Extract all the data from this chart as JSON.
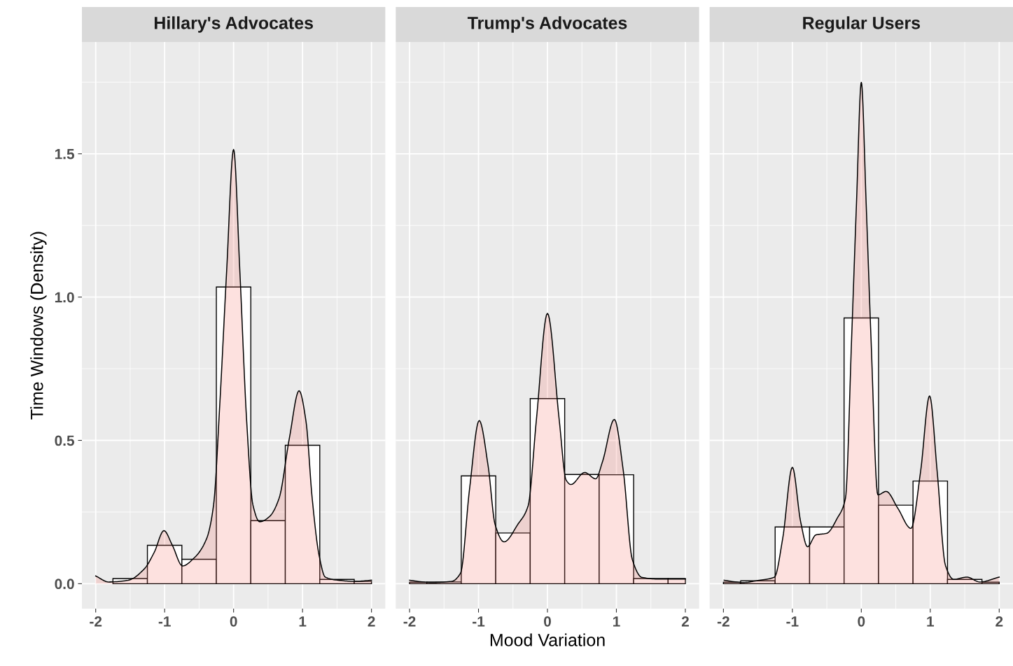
{
  "chart_data": [
    {
      "type": "histogram",
      "title": "Hillary's Advocates",
      "ylabel": "Time Windows (Density)",
      "bins": [
        -1.75,
        -1.25,
        -0.75,
        -0.25,
        0.25,
        0.75,
        1.25,
        1.75,
        2
      ],
      "values": [
        0.018,
        0.134,
        0.085,
        1.035,
        0.22,
        0.483,
        0.015,
        0.008
      ],
      "color": "#ffffff",
      "series": [
        {
          "type": "area",
          "color": "#f8766d",
          "x": [
            -2.0,
            -1.81,
            -1.53,
            -1.29,
            -1.15,
            -1.01,
            -0.89,
            -0.74,
            -0.58,
            -0.39,
            -0.29,
            -0.2,
            -0.1,
            0.0,
            0.09,
            0.19,
            0.28,
            0.38,
            0.52,
            0.66,
            0.81,
            0.95,
            1.05,
            1.14,
            1.24,
            1.33,
            1.52,
            1.76,
            2.0
          ],
          "values": [
            0.027,
            0.006,
            0.012,
            0.053,
            0.11,
            0.185,
            0.135,
            0.062,
            0.088,
            0.158,
            0.275,
            0.626,
            1.094,
            1.515,
            1.094,
            0.567,
            0.275,
            0.216,
            0.234,
            0.298,
            0.509,
            0.673,
            0.567,
            0.298,
            0.099,
            0.023,
            0.012,
            0.008,
            0.012
          ]
        }
      ],
      "xlim": [
        -2.2,
        2.2
      ],
      "ylim": [
        -0.087,
        1.89
      ],
      "xticks": [
        -2,
        -1,
        0,
        1,
        2
      ],
      "yticks": [
        {
          "value": 0,
          "label": "0.0"
        },
        0.5,
        {
          "value": 1,
          "label": "1.0"
        },
        1.5
      ],
      "grid": true,
      "legend": false
    },
    {
      "type": "histogram",
      "title": "Trump's Advocates",
      "xlabel": "Mood Variation",
      "bins": [
        -2,
        -1.75,
        -1.25,
        -0.75,
        -0.25,
        0.25,
        0.75,
        1.25,
        1.75,
        2
      ],
      "values": [
        0.005,
        0.006,
        0.376,
        0.177,
        0.646,
        0.381,
        0.38,
        0.018,
        0.018
      ],
      "color": "#ffffff",
      "series": [
        {
          "type": "area",
          "color": "#f8766d",
          "x": [
            -2.0,
            -1.69,
            -1.39,
            -1.26,
            -1.13,
            -0.99,
            -0.86,
            -0.76,
            -0.63,
            -0.43,
            -0.28,
            -0.16,
            0.0,
            0.17,
            0.27,
            0.34,
            0.54,
            0.7,
            0.8,
            0.97,
            1.1,
            1.23,
            1.37,
            1.63,
            2.0
          ],
          "values": [
            0.012,
            0.004,
            0.008,
            0.037,
            0.33,
            0.569,
            0.41,
            0.207,
            0.146,
            0.207,
            0.272,
            0.573,
            0.943,
            0.573,
            0.362,
            0.346,
            0.388,
            0.366,
            0.427,
            0.573,
            0.394,
            0.085,
            0.022,
            0.016,
            0.016
          ]
        }
      ],
      "xlim": [
        -2.2,
        2.2
      ],
      "ylim": [
        -0.087,
        1.89
      ],
      "xticks": [
        -2,
        -1,
        0,
        1,
        2
      ],
      "yticks": [
        0.0,
        0.5,
        1.0,
        1.5
      ],
      "grid": true,
      "legend": false,
      "tick_labels": "x"
    },
    {
      "type": "histogram",
      "title": "Regular Users",
      "bins": [
        -2,
        -1.75,
        -1.25,
        -0.75,
        -0.25,
        0.25,
        0.75,
        1.25,
        1.75,
        2
      ],
      "values": [
        0.005,
        0.01,
        0.198,
        0.198,
        0.927,
        0.274,
        0.358,
        0.015,
        0.005
      ],
      "color": "#ffffff",
      "series": [
        {
          "type": "area",
          "color": "#f8766d",
          "x": [
            -1.99,
            -1.72,
            -1.48,
            -1.26,
            -1.14,
            -1.0,
            -0.88,
            -0.78,
            -0.66,
            -0.5,
            -0.35,
            -0.23,
            -0.14,
            -0.07,
            0.0,
            0.07,
            0.14,
            0.24,
            0.36,
            0.53,
            0.72,
            0.86,
            0.99,
            1.1,
            1.22,
            1.34,
            1.53,
            1.72,
            2.0
          ],
          "values": [
            0.012,
            0.004,
            0.012,
            0.023,
            0.158,
            0.406,
            0.216,
            0.129,
            0.17,
            0.176,
            0.228,
            0.298,
            0.86,
            1.328,
            1.749,
            1.328,
            0.86,
            0.31,
            0.322,
            0.263,
            0.193,
            0.392,
            0.655,
            0.392,
            0.064,
            0.015,
            0.023,
            0.006,
            0.023
          ]
        }
      ],
      "xlim": [
        -2.2,
        2.2
      ],
      "ylim": [
        -0.087,
        1.89
      ],
      "xticks": [
        -2,
        -1,
        0,
        1,
        2
      ],
      "yticks": [
        0.0,
        0.5,
        1.0,
        1.5
      ],
      "grid": true,
      "legend": false,
      "tick_labels": "x"
    }
  ]
}
